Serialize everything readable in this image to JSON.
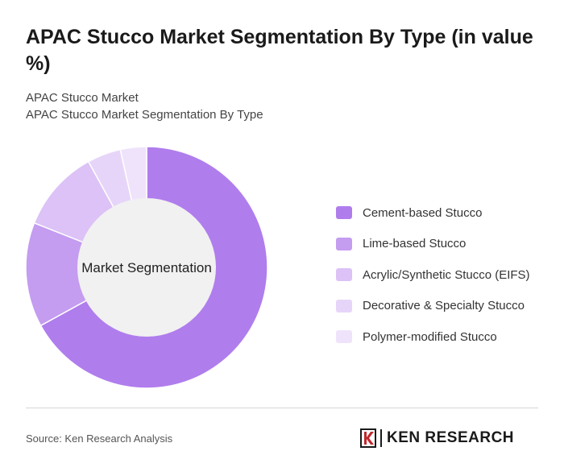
{
  "header": {
    "title": "APAC Stucco Market Segmentation By Type (in value %)",
    "subtitle_1": "APAC Stucco Market",
    "subtitle_2": "APAC Stucco Market Segmentation By Type"
  },
  "chart_data": {
    "type": "pie",
    "variant": "donut",
    "center_label": "Market Segmentation",
    "categories": [
      "Cement-based Stucco",
      "Lime-based Stucco",
      "Acrylic/Synthetic Stucco (EIFS)",
      "Decorative & Specialty Stucco",
      "Polymer-modified Stucco"
    ],
    "values": [
      67,
      14,
      11,
      4.5,
      3.5
    ],
    "colors": [
      "#b07ded",
      "#c49cf0",
      "#dcc2f6",
      "#e7d5f9",
      "#efe3fb"
    ],
    "legend_position": "right"
  },
  "footer": {
    "source": "Source: Ken Research Analysis",
    "brand": "KEN RESEARCH"
  }
}
